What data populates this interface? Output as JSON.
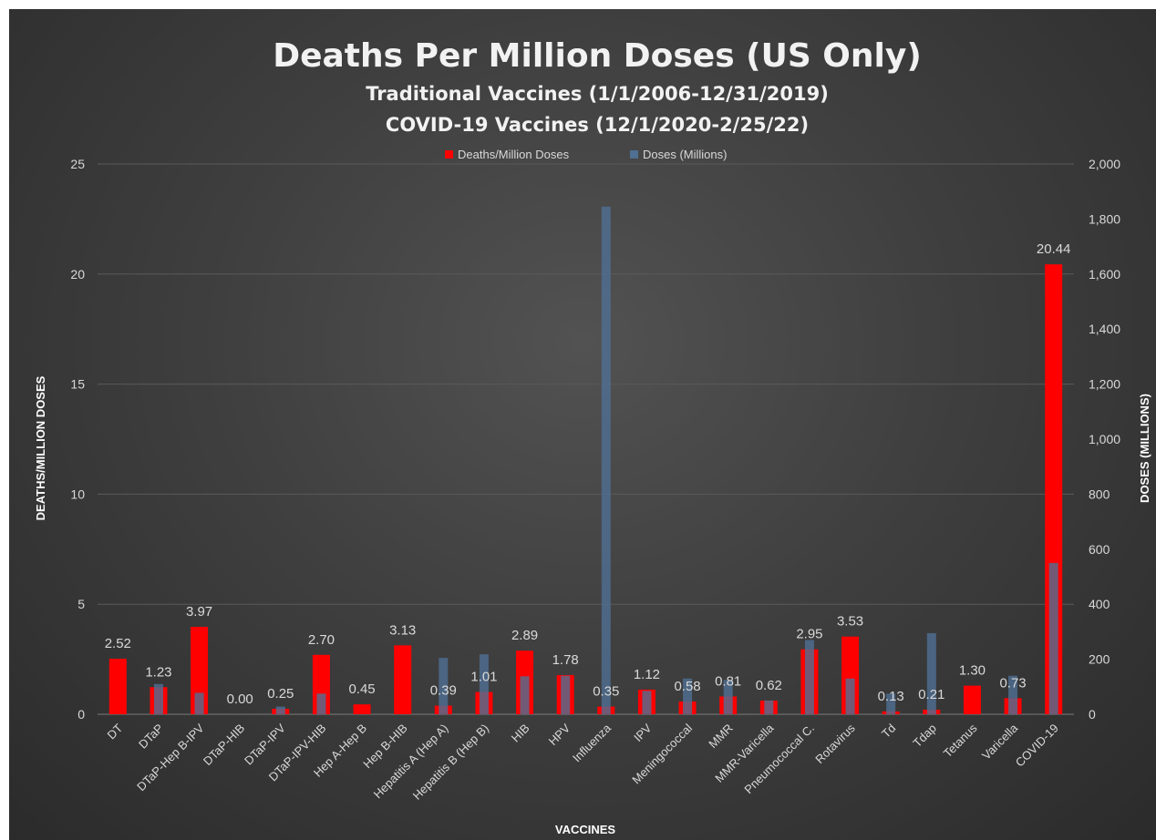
{
  "chart_data": {
    "type": "bar",
    "title": "Deaths Per Million Doses (US Only)",
    "subtitle": [
      "Traditional Vaccines (1/1/2006-12/31/2019)",
      "COVID-19 Vaccines (12/1/2020-2/25/22)"
    ],
    "xlabel": "VACCINES",
    "ylabel": "DEATHS/MILLION DOSES",
    "y2label": "DOSES (MILLIONS)",
    "ylim": [
      0,
      25
    ],
    "y2lim": [
      0,
      2000
    ],
    "yticks": [
      0,
      5,
      10,
      15,
      20,
      25
    ],
    "y2ticks": [
      "0",
      "200",
      "400",
      "600",
      "800",
      "1,000",
      "1,200",
      "1,400",
      "1,600",
      "1,800",
      "2,000"
    ],
    "grid": true,
    "legend_position": "top-center",
    "categories": [
      "DT",
      "DTaP",
      "DTaP-Hep B-IPV",
      "DTaP-HIB",
      "DTaP-IPV",
      "DTaP-IPV-HIB",
      "Hep A-Hep B",
      "Hep B-HIB",
      "Hepatitis A (Hep A)",
      "Hepatitis B (Hep B)",
      "HIB",
      "HPV",
      "Influenza",
      "IPV",
      "Meningococcal",
      "MMR",
      "MMR-Varicella",
      "Pneumococcal C.",
      "Rotavirus",
      "Td",
      "Tdap",
      "Tetanus",
      "Varicella",
      "COVID-19"
    ],
    "series": [
      {
        "name": "Deaths/Million Doses",
        "axis": "left",
        "color": "#ff0000",
        "values": [
          2.52,
          1.23,
          3.97,
          0.0,
          0.25,
          2.7,
          0.45,
          3.13,
          0.39,
          1.01,
          2.89,
          1.78,
          0.35,
          1.12,
          0.58,
          0.81,
          0.62,
          2.95,
          3.53,
          0.13,
          0.21,
          1.3,
          0.73,
          20.44
        ],
        "labels": [
          "2.52",
          "1.23",
          "3.97",
          "0.00",
          "0.25",
          "2.70",
          "0.45",
          "3.13",
          "0.39",
          "1.01",
          "2.89",
          "1.78",
          "0.35",
          "1.12",
          "0.58",
          "0.81",
          "0.62",
          "2.95",
          "3.53",
          "0.13",
          "0.21",
          "1.30",
          "0.73",
          "20.44"
        ]
      },
      {
        "name": "Doses (Millions)",
        "axis": "right",
        "color": "#4f6f93",
        "values": [
          0,
          110,
          78,
          0,
          28,
          75,
          0,
          0,
          205,
          218,
          138,
          140,
          1845,
          85,
          130,
          125,
          50,
          270,
          130,
          75,
          295,
          0,
          140,
          550
        ]
      }
    ]
  }
}
